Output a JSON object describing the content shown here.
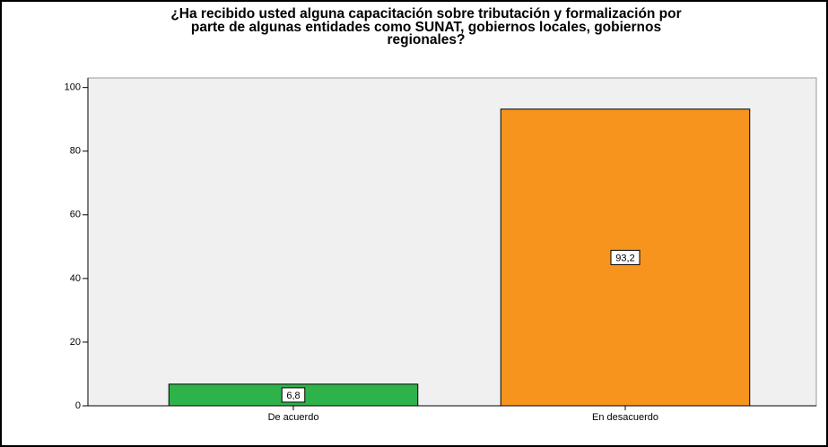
{
  "chart_data": {
    "type": "bar",
    "title": [
      "¿Ha recibido usted alguna capacitación sobre tributación y formalización por",
      "parte de algunas entidades como SUNAT, gobiernos locales, gobiernos",
      "regionales?"
    ],
    "categories": [
      "De acuerdo",
      "En desacuerdo"
    ],
    "values": [
      6.8,
      93.2
    ],
    "value_labels": [
      "6,8",
      "93,2"
    ],
    "colors": [
      "#2db34a",
      "#f7941d"
    ],
    "ylim": [
      0,
      103
    ],
    "yticks": [
      0,
      20,
      40,
      60,
      80,
      100
    ],
    "grid": false
  }
}
